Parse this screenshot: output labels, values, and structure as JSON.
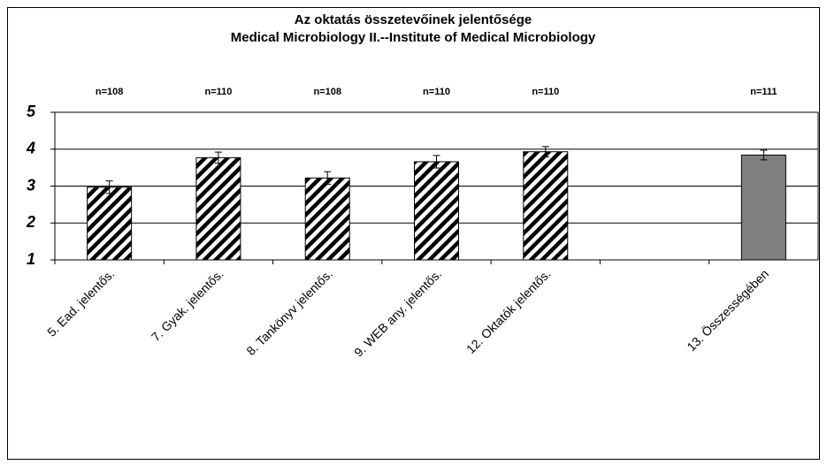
{
  "chart_data": {
    "type": "bar",
    "title": "Az oktatás összetevőinek jelentősége",
    "subtitle": "Medical Microbiology II.--Institute of Medical Microbiology",
    "categories": [
      "5. Ead. jelentős.",
      "7. Gyak. jelentős.",
      "8. Tankönyv jelentős.",
      "9. WEB any. jelentős.",
      "12. Oktatók jelentős.",
      null,
      "13. Összességében"
    ],
    "values": [
      2.97,
      3.77,
      3.22,
      3.66,
      3.93,
      null,
      3.84
    ],
    "errors": [
      0.17,
      0.15,
      0.17,
      0.17,
      0.14,
      null,
      0.13
    ],
    "n_labels": [
      "n=108",
      "n=110",
      "n=108",
      "n=110",
      "n=110",
      null,
      "n=111"
    ],
    "colors": [
      "#000000",
      "#000000",
      "#000000",
      "#000000",
      "#000000",
      null,
      "#808080"
    ],
    "hatched": [
      true,
      true,
      true,
      true,
      true,
      null,
      false
    ],
    "ylim": [
      1,
      5
    ],
    "yticks": [
      1,
      2,
      3,
      4,
      5
    ],
    "grid": true
  }
}
